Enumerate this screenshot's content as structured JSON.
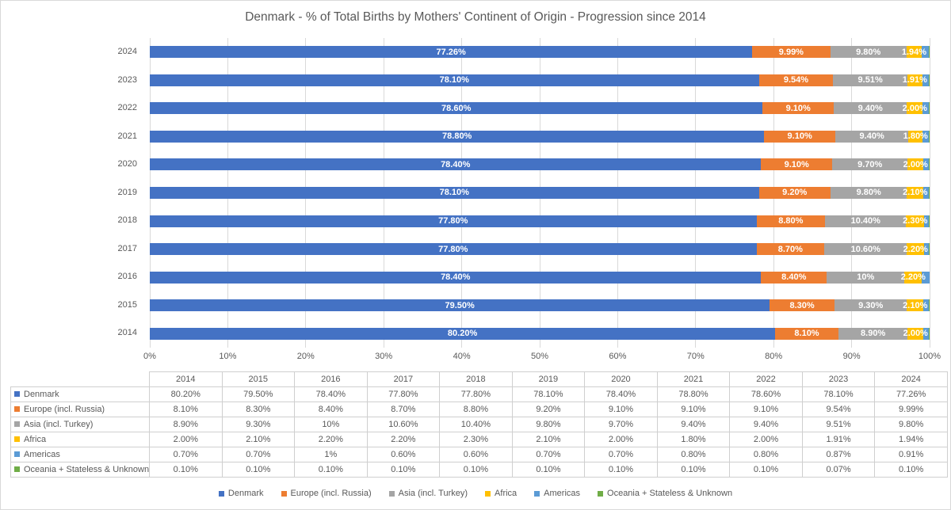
{
  "title": "Denmark - % of Total Births by Mothers' Continent of Origin - Progression since 2014",
  "colors": {
    "grid": "#d9d9d9",
    "table_border": "#cfcfcf",
    "text": "#595959",
    "bar_label": "#ffffff"
  },
  "chart_data": {
    "type": "bar",
    "orientation": "horizontal-stacked",
    "title": "Denmark - % of Total Births by Mothers' Continent of Origin - Progression since 2014",
    "categories": [
      "2014",
      "2015",
      "2016",
      "2017",
      "2018",
      "2019",
      "2020",
      "2021",
      "2022",
      "2023",
      "2024"
    ],
    "category_order_top_to_bottom": [
      "2024",
      "2023",
      "2022",
      "2021",
      "2020",
      "2019",
      "2018",
      "2017",
      "2016",
      "2015",
      "2014"
    ],
    "x_axis": {
      "min": 0,
      "max": 100,
      "ticks": [
        "0%",
        "10%",
        "20%",
        "30%",
        "40%",
        "50%",
        "60%",
        "70%",
        "80%",
        "90%",
        "100%"
      ]
    },
    "grid": true,
    "legend_position": "bottom",
    "series": [
      {
        "name": "Denmark",
        "color": "#4472C4",
        "show_bar_labels": true,
        "values": [
          80.2,
          79.5,
          78.4,
          77.8,
          77.8,
          78.1,
          78.4,
          78.8,
          78.6,
          78.1,
          77.26
        ],
        "display": [
          "80.20%",
          "79.50%",
          "78.40%",
          "77.80%",
          "77.80%",
          "78.10%",
          "78.40%",
          "78.80%",
          "78.60%",
          "78.10%",
          "77.26%"
        ]
      },
      {
        "name": "Europe (incl. Russia)",
        "color": "#ED7D31",
        "show_bar_labels": true,
        "values": [
          8.1,
          8.3,
          8.4,
          8.7,
          8.8,
          9.2,
          9.1,
          9.1,
          9.1,
          9.54,
          9.99
        ],
        "display": [
          "8.10%",
          "8.30%",
          "8.40%",
          "8.70%",
          "8.80%",
          "9.20%",
          "9.10%",
          "9.10%",
          "9.10%",
          "9.54%",
          "9.99%"
        ]
      },
      {
        "name": "Asia (incl. Turkey)",
        "color": "#A5A5A5",
        "show_bar_labels": true,
        "values": [
          8.9,
          9.3,
          10,
          10.6,
          10.4,
          9.8,
          9.7,
          9.4,
          9.4,
          9.51,
          9.8
        ],
        "display": [
          "8.90%",
          "9.30%",
          "10%",
          "10.60%",
          "10.40%",
          "9.80%",
          "9.70%",
          "9.40%",
          "9.40%",
          "9.51%",
          "9.80%"
        ]
      },
      {
        "name": "Africa",
        "color": "#FFC000",
        "show_bar_labels": true,
        "values": [
          2,
          2.1,
          2.2,
          2.2,
          2.3,
          2.1,
          2,
          1.8,
          2,
          1.91,
          1.94
        ],
        "display": [
          "2.00%",
          "2.10%",
          "2.20%",
          "2.20%",
          "2.30%",
          "2.10%",
          "2.00%",
          "1.80%",
          "2.00%",
          "1.91%",
          "1.94%"
        ]
      },
      {
        "name": "Americas",
        "color": "#5B9BD5",
        "show_bar_labels": false,
        "values": [
          0.7,
          0.7,
          1,
          0.6,
          0.6,
          0.7,
          0.7,
          0.8,
          0.8,
          0.87,
          0.91
        ],
        "display": [
          "0.70%",
          "0.70%",
          "1%",
          "0.60%",
          "0.60%",
          "0.70%",
          "0.70%",
          "0.80%",
          "0.80%",
          "0.87%",
          "0.91%"
        ]
      },
      {
        "name": "Oceania + Stateless & Unknown",
        "color": "#70AD47",
        "show_bar_labels": false,
        "values": [
          0.1,
          0.1,
          0.1,
          0.1,
          0.1,
          0.1,
          0.1,
          0.1,
          0.1,
          0.07,
          0.1
        ],
        "display": [
          "0.10%",
          "0.10%",
          "0.10%",
          "0.10%",
          "0.10%",
          "0.10%",
          "0.10%",
          "0.10%",
          "0.10%",
          "0.07%",
          "0.10%"
        ]
      }
    ]
  }
}
